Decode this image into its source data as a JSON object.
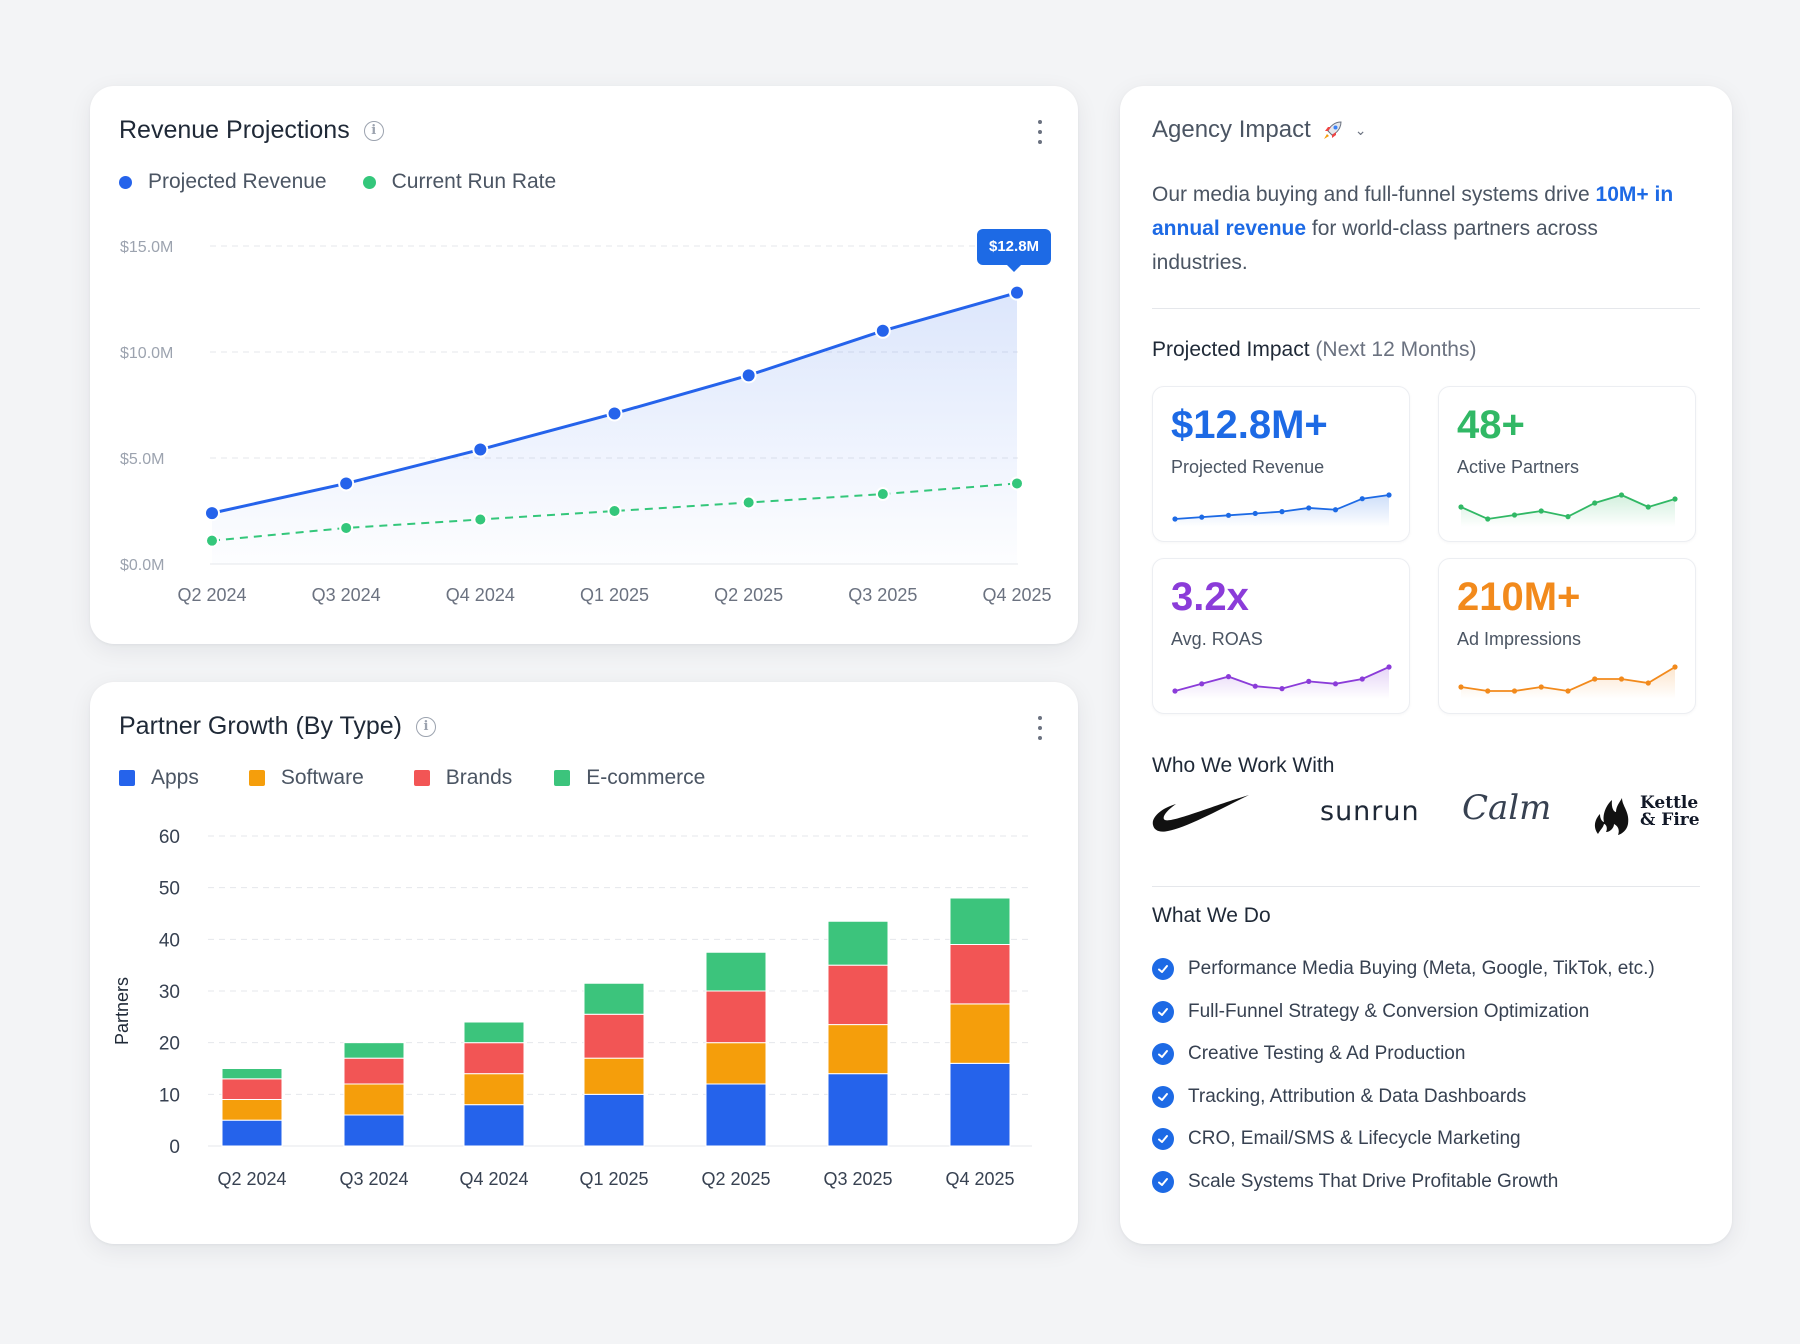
{
  "revenue_card": {
    "title": "Revenue Projections",
    "legend": [
      {
        "label": "Projected Revenue",
        "color": "#2563eb"
      },
      {
        "label": "Current Run Rate",
        "color": "#34c77b"
      }
    ],
    "tooltip": "$12.8M"
  },
  "partner_card": {
    "title": "Partner Growth (By Type)",
    "legend": [
      {
        "label": "Apps",
        "color": "#2563eb"
      },
      {
        "label": "Software",
        "color": "#f59e0b"
      },
      {
        "label": "Brands",
        "color": "#f25555"
      },
      {
        "label": "E-commerce",
        "color": "#3cc47c"
      }
    ]
  },
  "chart_data": [
    {
      "type": "line",
      "title": "Revenue Projections",
      "x": [
        "Q2 2024",
        "Q3 2024",
        "Q4 2024",
        "Q1 2025",
        "Q2 2025",
        "Q3 2025",
        "Q4 2025"
      ],
      "series": [
        {
          "name": "Projected Revenue",
          "values": [
            2.4,
            3.8,
            5.4,
            7.1,
            8.9,
            11.0,
            12.8
          ],
          "color": "#2563eb",
          "area": true
        },
        {
          "name": "Current Run Rate",
          "values": [
            1.1,
            1.7,
            2.1,
            2.5,
            2.9,
            3.3,
            3.8
          ],
          "color": "#34c77b",
          "dashed": true
        }
      ],
      "yticks": [
        "$0.0M",
        "$5.0M",
        "$10.0M",
        "$15.0M"
      ],
      "ylim": [
        0,
        15
      ],
      "grid": true
    },
    {
      "type": "bar",
      "stacked": true,
      "title": "Partner Growth (By Type)",
      "categories": [
        "Q2 2024",
        "Q3 2024",
        "Q4 2024",
        "Q1 2025",
        "Q2 2025",
        "Q3 2025",
        "Q4 2025"
      ],
      "series": [
        {
          "name": "Apps",
          "values": [
            5,
            6,
            8,
            10,
            12,
            14,
            16
          ],
          "color": "#2563eb"
        },
        {
          "name": "Software",
          "values": [
            4,
            6,
            6,
            7,
            8,
            9.5,
            11.5
          ],
          "color": "#f59e0b"
        },
        {
          "name": "Brands",
          "values": [
            4,
            5,
            6,
            8.5,
            10,
            11.5,
            11.5
          ],
          "color": "#f25555"
        },
        {
          "name": "E-commerce",
          "values": [
            2,
            3,
            4,
            6,
            7.5,
            8.5,
            9
          ],
          "color": "#3cc47c"
        }
      ],
      "ylabel": "Partners",
      "yticks": [
        "0",
        "10",
        "20",
        "30",
        "40",
        "50",
        "60"
      ],
      "ylim": [
        0,
        60
      ],
      "grid": true
    }
  ],
  "agency": {
    "title": "Agency Impact",
    "desc_pre": "Our media buying and full-funnel systems drive ",
    "desc_highlight": "10M+ in annual revenue",
    "desc_post": " for world-class partners across industries.",
    "projected_title": "Projected Impact",
    "projected_sub": "(Next 12 Months)",
    "stats": [
      {
        "value": "$12.8M+",
        "label": "Projected Revenue",
        "color": "#1d6ae5",
        "trend": [
          1,
          1.5,
          2,
          2.5,
          3,
          4,
          3.5,
          6.5,
          7.5
        ]
      },
      {
        "value": "48+",
        "label": "Active Partners",
        "color": "#31b865",
        "trend": [
          4,
          2.5,
          3,
          3.5,
          2.8,
          4.5,
          5.5,
          4,
          5
        ]
      },
      {
        "value": "3.2x",
        "label": "Avg. ROAS",
        "color": "#8b3cd9",
        "trend": [
          1,
          2.5,
          4,
          2,
          1.5,
          3,
          2.5,
          3.5,
          6
        ]
      },
      {
        "value": "210M+",
        "label": "Ad Impressions",
        "color": "#f28a1c",
        "trend": [
          3,
          2.5,
          2.5,
          3,
          2.5,
          4,
          4,
          3.5,
          5.5
        ]
      }
    ],
    "clients_title": "Who We Work With",
    "clients": {
      "sunrun": "sunrun",
      "calm": "Calm",
      "kettle_line1": "Kettle",
      "kettle_line2": "& Fire"
    },
    "services_title": "What We Do",
    "services": [
      "Performance Media Buying (Meta, Google, TikTok, etc.)",
      "Full-Funnel Strategy & Conversion Optimization",
      "Creative Testing & Ad Production",
      "Tracking, Attribution & Data Dashboards",
      "CRO, Email/SMS & Lifecycle Marketing",
      "Scale Systems That Drive Profitable Growth"
    ]
  }
}
